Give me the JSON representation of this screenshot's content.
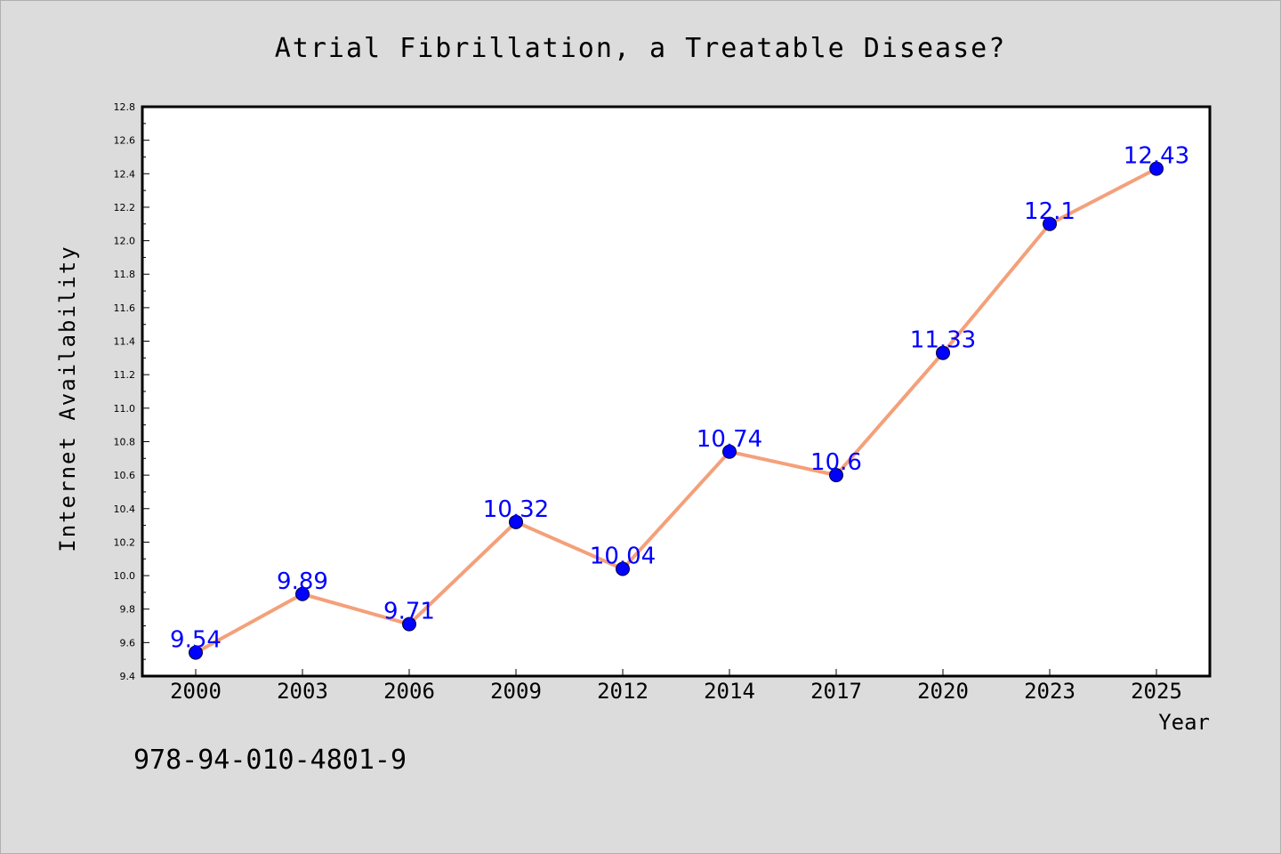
{
  "chart_data": {
    "type": "line",
    "title": "Atrial Fibrillation, a Treatable Disease?",
    "xlabel": "Year",
    "ylabel": "Internet Availability",
    "categories": [
      "2000",
      "2003",
      "2006",
      "2009",
      "2012",
      "2014",
      "2017",
      "2020",
      "2023",
      "2025"
    ],
    "series": [
      {
        "values": [
          9.54,
          9.89,
          9.71,
          10.32,
          10.04,
          10.74,
          10.6,
          11.33,
          12.1,
          12.43
        ],
        "data_labels": [
          "9.54",
          "9.89",
          "9.71",
          "10.32",
          "10.04",
          "10.74",
          "10.6",
          "11.33",
          "12.1",
          "12.43"
        ],
        "line_color": "#f4a07a",
        "marker_color": "#0000ff"
      }
    ],
    "ylim": [
      9.4,
      12.8
    ],
    "yticks": [
      "9.4",
      "9.6",
      "9.8",
      "10.0",
      "10.2",
      "10.4",
      "10.6",
      "10.8",
      "11.0",
      "11.2",
      "11.4",
      "11.6",
      "11.8",
      "12.0",
      "12.2",
      "12.4",
      "12.6",
      "12.8"
    ],
    "grid": false,
    "legend": "none"
  },
  "footer_text": "978-94-010-4801-9",
  "colors": {
    "background": "#dcdcdc",
    "plot_background": "#ffffff",
    "line": "#f4a07a",
    "marker": "#0000ff",
    "data_label": "#0000ff"
  }
}
